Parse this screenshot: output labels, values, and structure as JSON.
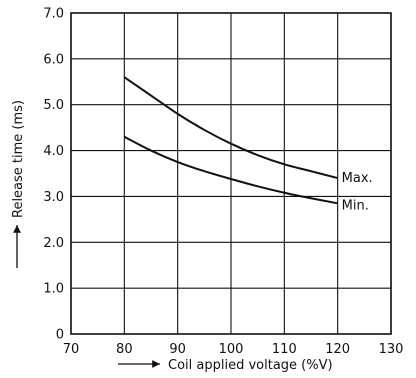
{
  "chart_data": {
    "type": "line",
    "xlabel": "Coil applied voltage (%V)",
    "ylabel": "Release time (ms)",
    "xlim": [
      70,
      130
    ],
    "ylim": [
      0,
      7.0
    ],
    "x_ticks": [
      "70",
      "80",
      "90",
      "100",
      "110",
      "120",
      "130"
    ],
    "y_ticks": [
      "0",
      "1.0",
      "2.0",
      "3.0",
      "4.0",
      "5.0",
      "6.0",
      "7.0"
    ],
    "grid": true,
    "series": [
      {
        "name": "Max.",
        "color": "#111111",
        "x": [
          80,
          85,
          90,
          95,
          100,
          105,
          110,
          115,
          120
        ],
        "y": [
          5.6,
          5.2,
          4.8,
          4.45,
          4.15,
          3.9,
          3.7,
          3.55,
          3.4
        ]
      },
      {
        "name": "Min.",
        "color": "#111111",
        "x": [
          80,
          85,
          90,
          95,
          100,
          105,
          110,
          115,
          120
        ],
        "y": [
          4.3,
          4.0,
          3.75,
          3.55,
          3.38,
          3.22,
          3.08,
          2.96,
          2.85
        ]
      }
    ]
  }
}
